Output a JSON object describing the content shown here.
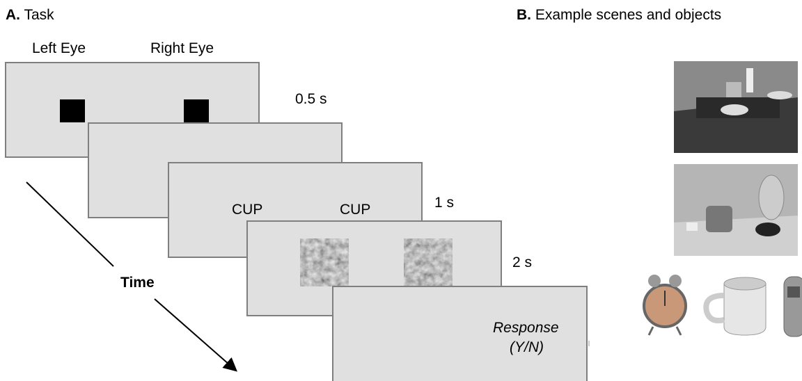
{
  "panel_a": {
    "label": "A.",
    "title": "Task",
    "left_eye": "Left Eye",
    "right_eye": "Right Eye",
    "durations": [
      "0.5 s",
      "1 s",
      "2 s"
    ],
    "cue_words": [
      "CUP",
      "CUP"
    ],
    "time_label": "Time",
    "response": [
      "Response",
      "(Y/N)"
    ]
  },
  "panel_b": {
    "label": "B.",
    "title": "Example scenes and objects"
  }
}
